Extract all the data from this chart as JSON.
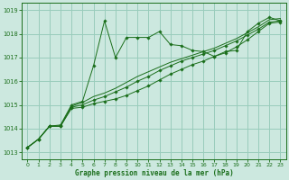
{
  "title": "Graphe pression niveau de la mer (hPa)",
  "background_color": "#cce8df",
  "grid_color": "#99ccbb",
  "line_color": "#1a6e1a",
  "xlim": [
    -0.5,
    23.5
  ],
  "ylim": [
    1012.7,
    1019.3
  ],
  "xticks": [
    0,
    1,
    2,
    3,
    4,
    5,
    6,
    7,
    8,
    9,
    10,
    11,
    12,
    13,
    14,
    15,
    16,
    17,
    18,
    19,
    20,
    21,
    22,
    23
  ],
  "yticks": [
    1013,
    1014,
    1015,
    1016,
    1017,
    1018,
    1019
  ],
  "series": [
    {
      "x": [
        0,
        1,
        2,
        3,
        4,
        5,
        6,
        7,
        8,
        9,
        10,
        11,
        12,
        13,
        14,
        15,
        16,
        17,
        18,
        19,
        20,
        21,
        22,
        23
      ],
      "y": [
        1013.2,
        1013.55,
        1014.1,
        1014.1,
        1014.85,
        1014.9,
        1015.05,
        1015.15,
        1015.25,
        1015.4,
        1015.6,
        1015.8,
        1016.05,
        1016.3,
        1016.5,
        1016.7,
        1016.85,
        1017.05,
        1017.2,
        1017.45,
        1017.75,
        1018.1,
        1018.45,
        1018.5
      ],
      "marker": true
    },
    {
      "x": [
        0,
        1,
        2,
        3,
        4,
        5,
        6,
        7,
        8,
        9,
        10,
        11,
        12,
        13,
        14,
        15,
        16,
        17,
        18,
        19,
        20,
        21,
        22,
        23
      ],
      "y": [
        1013.2,
        1013.55,
        1014.1,
        1014.1,
        1014.9,
        1015.0,
        1015.2,
        1015.35,
        1015.55,
        1015.75,
        1016.0,
        1016.2,
        1016.45,
        1016.65,
        1016.85,
        1017.0,
        1017.15,
        1017.3,
        1017.5,
        1017.7,
        1017.95,
        1018.2,
        1018.5,
        1018.55
      ],
      "marker": true
    },
    {
      "x": [
        0,
        1,
        2,
        3,
        4,
        5,
        6,
        7,
        8,
        9,
        10,
        11,
        12,
        13,
        14,
        15,
        16,
        17,
        18,
        19,
        20,
        21,
        22,
        23
      ],
      "y": [
        1013.2,
        1013.55,
        1014.1,
        1014.1,
        1014.95,
        1015.1,
        1015.35,
        1015.5,
        1015.7,
        1015.95,
        1016.2,
        1016.4,
        1016.6,
        1016.8,
        1016.95,
        1017.1,
        1017.25,
        1017.4,
        1017.6,
        1017.8,
        1018.05,
        1018.3,
        1018.6,
        1018.65
      ],
      "marker": false
    },
    {
      "x": [
        0,
        1,
        2,
        3,
        4,
        5,
        6,
        7,
        8,
        9,
        10,
        11,
        12,
        13,
        14,
        15,
        16,
        17,
        18,
        19,
        20,
        21,
        22,
        23
      ],
      "y": [
        1013.2,
        1013.55,
        1014.1,
        1014.15,
        1015.0,
        1015.15,
        1016.65,
        1018.55,
        1017.0,
        1017.85,
        1017.85,
        1017.85,
        1018.1,
        1017.55,
        1017.5,
        1017.3,
        1017.25,
        1017.05,
        1017.25,
        1017.3,
        1018.1,
        1018.45,
        1018.7,
        1018.55
      ],
      "marker": true
    }
  ]
}
